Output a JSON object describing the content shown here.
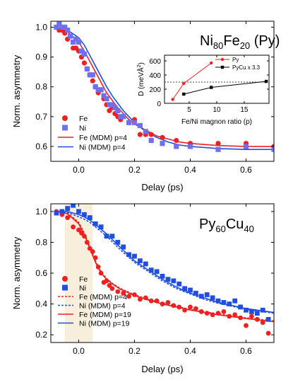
{
  "colors": {
    "fe": "#ee2020",
    "ni_top": "#6f6ff0",
    "ni_bottom": "#1f4fe0",
    "band": "#f7efdb",
    "black": "#000000"
  },
  "chart_data": [
    {
      "type": "scatter",
      "title": {
        "base": "Ni",
        "sub1": "80",
        "mid": "Fe",
        "sub2": "20",
        "tail": " (Py)"
      },
      "xlabel": "Delay (ps)",
      "ylabel": "Norm. asymmetry",
      "xlim": [
        -0.1,
        0.7
      ],
      "ylim": [
        0.55,
        1.02
      ],
      "xticks": [
        0.0,
        0.2,
        0.4,
        0.6
      ],
      "yticks": [
        0.6,
        0.7,
        0.8,
        0.9,
        1.0
      ],
      "xtick_labels": [
        "0.0",
        "0.2",
        "0.4",
        "0.6"
      ],
      "ytick_labels": [
        "0.6",
        "0.7",
        "0.8",
        "0.9",
        "1.0"
      ],
      "series": [
        {
          "name": "Fe",
          "kind": "points",
          "marker": "circle",
          "color": "#ee2020",
          "x": [
            -0.08,
            -0.07,
            -0.06,
            -0.05,
            -0.04,
            -0.03,
            -0.02,
            -0.01,
            0.0,
            0.01,
            0.02,
            0.03,
            0.04,
            0.05,
            0.06,
            0.07,
            0.08,
            0.09,
            0.1,
            0.11,
            0.12,
            0.13,
            0.14,
            0.15,
            0.16,
            0.18,
            0.2,
            0.22,
            0.24,
            0.26,
            0.3,
            0.35,
            0.4,
            0.5,
            0.6,
            0.7
          ],
          "y": [
            1.0,
            0.99,
            0.99,
            0.98,
            0.96,
            0.97,
            0.93,
            0.93,
            0.92,
            0.9,
            0.88,
            0.86,
            0.84,
            0.82,
            0.8,
            0.78,
            0.79,
            0.76,
            0.74,
            0.72,
            0.73,
            0.71,
            0.7,
            0.69,
            0.7,
            0.68,
            0.69,
            0.64,
            0.64,
            0.64,
            0.63,
            0.62,
            0.61,
            0.61,
            0.61,
            0.6
          ]
        },
        {
          "name": "Ni",
          "kind": "points",
          "marker": "square",
          "color": "#6f6ff0",
          "x": [
            -0.08,
            -0.07,
            -0.06,
            -0.05,
            -0.04,
            -0.03,
            -0.02,
            -0.01,
            0.0,
            0.01,
            0.02,
            0.03,
            0.04,
            0.05,
            0.06,
            0.07,
            0.08,
            0.09,
            0.1,
            0.11,
            0.12,
            0.13,
            0.14,
            0.15,
            0.16,
            0.18,
            0.2,
            0.22,
            0.24,
            0.26,
            0.3,
            0.35,
            0.4,
            0.5,
            0.6,
            0.7
          ],
          "y": [
            1.0,
            1.01,
            1.0,
            1.0,
            0.99,
            0.97,
            0.95,
            0.96,
            0.95,
            0.92,
            0.91,
            0.86,
            0.84,
            0.84,
            0.8,
            0.79,
            0.79,
            0.77,
            0.76,
            0.74,
            0.74,
            0.73,
            0.72,
            0.7,
            0.7,
            0.68,
            0.68,
            0.67,
            0.65,
            0.62,
            0.61,
            0.6,
            0.6,
            0.59,
            0.6,
            0.59
          ]
        },
        {
          "name": "Fe (MDM) p=4",
          "kind": "line",
          "color": "#ee2020",
          "dash": "solid",
          "x": [
            -0.08,
            -0.04,
            0.0,
            0.02,
            0.04,
            0.06,
            0.08,
            0.1,
            0.12,
            0.14,
            0.16,
            0.18,
            0.2,
            0.24,
            0.28,
            0.32,
            0.36,
            0.4,
            0.5,
            0.6,
            0.7
          ],
          "y": [
            1.0,
            0.985,
            0.95,
            0.92,
            0.885,
            0.85,
            0.815,
            0.78,
            0.755,
            0.73,
            0.71,
            0.69,
            0.675,
            0.655,
            0.635,
            0.625,
            0.615,
            0.61,
            0.603,
            0.6,
            0.6
          ]
        },
        {
          "name": "Ni (MDM) p=4",
          "kind": "line",
          "color": "#1f4fe0",
          "dash": "solid",
          "x": [
            -0.08,
            -0.04,
            0.0,
            0.02,
            0.04,
            0.06,
            0.08,
            0.1,
            0.12,
            0.14,
            0.16,
            0.18,
            0.2,
            0.24,
            0.28,
            0.32,
            0.36,
            0.4,
            0.5,
            0.6,
            0.7
          ],
          "y": [
            1.0,
            0.99,
            0.965,
            0.94,
            0.905,
            0.87,
            0.835,
            0.8,
            0.77,
            0.745,
            0.72,
            0.7,
            0.68,
            0.65,
            0.63,
            0.615,
            0.605,
            0.6,
            0.593,
            0.59,
            0.59
          ]
        }
      ],
      "legend": {
        "placement": "bottom-left"
      }
    },
    {
      "type": "scatter",
      "inset": true,
      "xlabel": "Fe/Ni magnon ratio (p)",
      "ylabel": {
        "base": "D (meVÅ",
        "sup": "2",
        "tail": ")"
      },
      "xlim": [
        0.5,
        19.5
      ],
      "ylim": [
        0,
        680
      ],
      "xticks": [
        5,
        10,
        15
      ],
      "yticks": [
        0,
        200,
        400,
        600
      ],
      "xtick_labels": [
        "5",
        "10",
        "15"
      ],
      "ytick_labels": [
        "0",
        "200",
        "400",
        "600"
      ],
      "reference_line": {
        "y": 300,
        "style": "dashed"
      },
      "series": [
        {
          "name": "Py",
          "marker": "circle",
          "color": "#ee2020",
          "x": [
            2,
            4,
            9
          ],
          "y": [
            55,
            280,
            570
          ]
        },
        {
          "name": "PyCu x 3.3",
          "marker": "square",
          "color": "#000000",
          "x": [
            4,
            9,
            19
          ],
          "y": [
            130,
            225,
            310
          ]
        }
      ],
      "legend": {
        "placement": "top-right"
      }
    },
    {
      "type": "scatter",
      "title": {
        "base": "Py",
        "sub1": "60",
        "mid": "Cu",
        "sub2": "40",
        "tail": ""
      },
      "xlabel": "Delay (ps)",
      "ylabel": "Norm. asymmetry",
      "xlim": [
        -0.1,
        0.7
      ],
      "ylim": [
        0.15,
        1.05
      ],
      "xticks": [
        0.0,
        0.2,
        0.4,
        0.6
      ],
      "yticks": [
        0.2,
        0.4,
        0.6,
        0.8,
        1.0
      ],
      "xtick_labels": [
        "0.0",
        "0.2",
        "0.4",
        "0.6"
      ],
      "ytick_labels": [
        "0.2",
        "0.4",
        "0.6",
        "0.8",
        "1.0"
      ],
      "shaded_region": {
        "x": [
          -0.05,
          0.05
        ]
      },
      "series": [
        {
          "name": "Fe",
          "kind": "points",
          "marker": "circle",
          "color": "#ee2020",
          "x": [
            -0.08,
            -0.06,
            -0.04,
            -0.02,
            0.0,
            0.01,
            0.02,
            0.03,
            0.04,
            0.05,
            0.06,
            0.07,
            0.08,
            0.09,
            0.1,
            0.11,
            0.12,
            0.14,
            0.16,
            0.18,
            0.2,
            0.22,
            0.24,
            0.26,
            0.28,
            0.3,
            0.32,
            0.34,
            0.36,
            0.38,
            0.4,
            0.42,
            0.44,
            0.46,
            0.48,
            0.5,
            0.52,
            0.54,
            0.56,
            0.58,
            0.6,
            0.62,
            0.64,
            0.66,
            0.68
          ],
          "y": [
            1.0,
            0.98,
            0.96,
            0.9,
            0.88,
            0.86,
            0.84,
            0.8,
            0.76,
            0.74,
            0.7,
            0.64,
            0.6,
            0.54,
            0.55,
            0.52,
            0.5,
            0.48,
            0.47,
            0.45,
            0.46,
            0.43,
            0.44,
            0.42,
            0.42,
            0.4,
            0.41,
            0.39,
            0.38,
            0.36,
            0.38,
            0.37,
            0.35,
            0.34,
            0.33,
            0.34,
            0.35,
            0.32,
            0.33,
            0.31,
            0.26,
            0.32,
            0.3,
            0.28,
            0.21
          ]
        },
        {
          "name": "Ni",
          "kind": "points",
          "marker": "square",
          "color": "#1f4fe0",
          "x": [
            -0.08,
            -0.06,
            -0.04,
            -0.02,
            0.0,
            0.02,
            0.04,
            0.06,
            0.08,
            0.1,
            0.12,
            0.14,
            0.16,
            0.18,
            0.2,
            0.22,
            0.24,
            0.26,
            0.28,
            0.3,
            0.32,
            0.34,
            0.36,
            0.38,
            0.4,
            0.42,
            0.44,
            0.46,
            0.48,
            0.5,
            0.52,
            0.54,
            0.56,
            0.58,
            0.6,
            0.62,
            0.64,
            0.66,
            0.68
          ],
          "y": [
            0.99,
            1.0,
            1.02,
            1.04,
            1.0,
            0.98,
            0.96,
            0.92,
            0.9,
            0.84,
            0.84,
            0.8,
            0.77,
            0.72,
            0.71,
            0.68,
            0.66,
            0.62,
            0.61,
            0.58,
            0.56,
            0.55,
            0.53,
            0.5,
            0.49,
            0.47,
            0.45,
            0.46,
            0.44,
            0.42,
            0.41,
            0.4,
            0.42,
            0.38,
            0.36,
            0.35,
            0.34,
            0.36,
            0.3
          ]
        },
        {
          "name": "Fe (MDM) p=4",
          "kind": "line",
          "color": "#ee2020",
          "dash": "dashed",
          "x": [
            -0.08,
            -0.04,
            0.0,
            0.02,
            0.04,
            0.06,
            0.08,
            0.1,
            0.12,
            0.15,
            0.2,
            0.25,
            0.3,
            0.35,
            0.4,
            0.5,
            0.6,
            0.7
          ],
          "y": [
            1.0,
            0.99,
            0.93,
            0.86,
            0.77,
            0.68,
            0.61,
            0.565,
            0.535,
            0.5,
            0.46,
            0.43,
            0.405,
            0.385,
            0.365,
            0.335,
            0.31,
            0.29
          ]
        },
        {
          "name": "Ni (MDM) p=4",
          "kind": "line",
          "color": "#1f4fe0",
          "dash": "dashed",
          "x": [
            -0.08,
            -0.04,
            0.0,
            0.02,
            0.04,
            0.06,
            0.1,
            0.15,
            0.2,
            0.25,
            0.3,
            0.35,
            0.4,
            0.45,
            0.5,
            0.6,
            0.7
          ],
          "y": [
            1.0,
            0.995,
            0.965,
            0.95,
            0.93,
            0.9,
            0.84,
            0.75,
            0.67,
            0.61,
            0.55,
            0.5,
            0.465,
            0.43,
            0.405,
            0.365,
            0.34
          ]
        },
        {
          "name": "Fe (MDM) p=19",
          "kind": "line",
          "color": "#ee2020",
          "dash": "solid",
          "x": [
            -0.08,
            -0.04,
            0.0,
            0.02,
            0.04,
            0.06,
            0.08,
            0.1,
            0.12,
            0.15,
            0.2,
            0.25,
            0.3,
            0.35,
            0.4,
            0.5,
            0.6,
            0.7
          ],
          "y": [
            1.0,
            0.985,
            0.92,
            0.85,
            0.76,
            0.67,
            0.6,
            0.56,
            0.53,
            0.495,
            0.455,
            0.425,
            0.4,
            0.38,
            0.36,
            0.33,
            0.305,
            0.285
          ]
        },
        {
          "name": "Ni (MDM) p=19",
          "kind": "line",
          "color": "#1f4fe0",
          "dash": "solid",
          "x": [
            -0.08,
            -0.04,
            0.0,
            0.02,
            0.04,
            0.06,
            0.1,
            0.15,
            0.2,
            0.25,
            0.3,
            0.35,
            0.4,
            0.45,
            0.5,
            0.6,
            0.7
          ],
          "y": [
            1.0,
            1.0,
            0.98,
            0.965,
            0.945,
            0.915,
            0.855,
            0.765,
            0.68,
            0.62,
            0.56,
            0.51,
            0.47,
            0.44,
            0.41,
            0.37,
            0.345
          ]
        }
      ],
      "legend": {
        "placement": "bottom-left"
      }
    }
  ]
}
